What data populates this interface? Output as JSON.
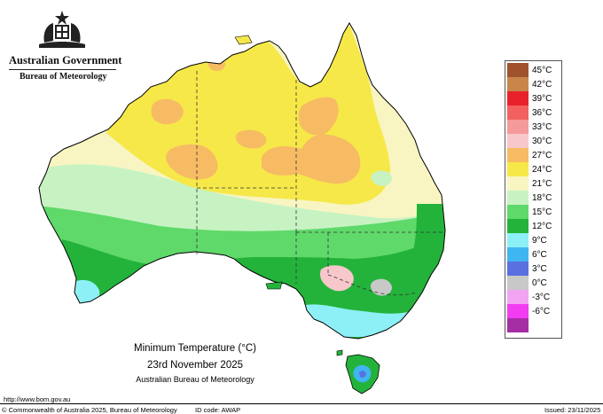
{
  "header": {
    "government": "Australian Government",
    "bureau": "Bureau of Meteorology"
  },
  "legend": [
    {
      "label": "45°C",
      "color": "#a0522d"
    },
    {
      "label": "42°C",
      "color": "#c8864a"
    },
    {
      "label": "39°C",
      "color": "#e8222a"
    },
    {
      "label": "36°C",
      "color": "#f36060"
    },
    {
      "label": "33°C",
      "color": "#f59a9a"
    },
    {
      "label": "30°C",
      "color": "#f7c7cb"
    },
    {
      "label": "27°C",
      "color": "#f6bb63"
    },
    {
      "label": "24°C",
      "color": "#f6e848"
    },
    {
      "label": "21°C",
      "color": "#f8f5c2"
    },
    {
      "label": "18°C",
      "color": "#c7f3c2"
    },
    {
      "label": "15°C",
      "color": "#5fd96a"
    },
    {
      "label": "12°C",
      "color": "#23b33a"
    },
    {
      "label": "9°C",
      "color": "#8ef0f7"
    },
    {
      "label": "6°C",
      "color": "#3fb6f0"
    },
    {
      "label": "3°C",
      "color": "#5a6fe0"
    },
    {
      "label": "0°C",
      "color": "#c8c8c8"
    },
    {
      "label": "-3°C",
      "color": "#f2a4f2"
    },
    {
      "label": "-6°C",
      "color": "#f23cf2"
    },
    {
      "label": "",
      "color": "#a52ea5"
    }
  ],
  "caption": {
    "title": "Minimum Temperature (°C)",
    "date": "23rd November 2025",
    "org": "Australian Bureau of Meteorology"
  },
  "footer": {
    "url": "http://www.bom.gov.au",
    "copyright": "© Commonwealth of Australia 2025, Bureau of Meteorology",
    "id_code": "ID code: AWAP",
    "issued": "Issued: 23/11/2025"
  }
}
